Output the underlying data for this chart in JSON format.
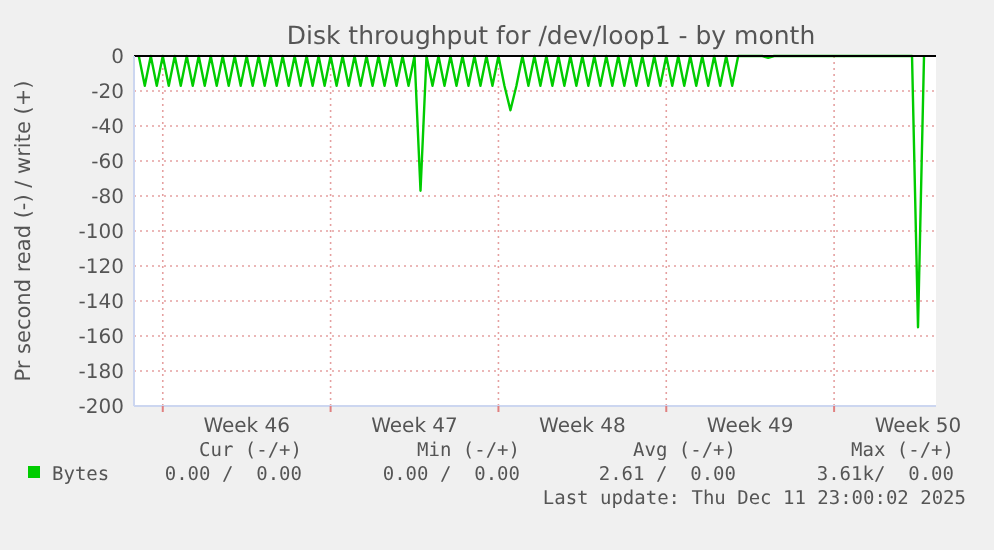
{
  "chart_data": {
    "type": "line",
    "title": "Disk throughput for /dev/loop1 - by month",
    "ylabel": "Pr second read (-) / write (+)",
    "categories": [
      null,
      null,
      null,
      null,
      null,
      null,
      null,
      null,
      null,
      null,
      null,
      null,
      null,
      null,
      null,
      null,
      null,
      null,
      "Week 46",
      null,
      null,
      null,
      null,
      null,
      null,
      null,
      null,
      null,
      null,
      null,
      null,
      null,
      null,
      null,
      null,
      null,
      null,
      null,
      null,
      null,
      null,
      null,
      null,
      null,
      null,
      null,
      "Week 47",
      null,
      null,
      null,
      null,
      null,
      null,
      null,
      null,
      null,
      null,
      null,
      null,
      null,
      null,
      null,
      null,
      null,
      null,
      null,
      null,
      null,
      null,
      null,
      null,
      null,
      null,
      null,
      "Week 48",
      null,
      null,
      null,
      null,
      null,
      null,
      null,
      null,
      null,
      null,
      null,
      null,
      null,
      null,
      null,
      null,
      null,
      null,
      null,
      null,
      null,
      null,
      null,
      null,
      null,
      null,
      null,
      "Week 49",
      null,
      null,
      null,
      null,
      null,
      null,
      null,
      null,
      null,
      null,
      null,
      null,
      null,
      null,
      null,
      null,
      null,
      null,
      null,
      null,
      null,
      null,
      null,
      null,
      null,
      null,
      null,
      "Week 50",
      null
    ],
    "ylim": [
      -200,
      0
    ],
    "yticks": [
      0,
      -20,
      -40,
      -60,
      -80,
      -100,
      -120,
      -140,
      -160,
      -180,
      -200
    ],
    "grid": true,
    "legend": "bottom left",
    "line_style": "solid",
    "series": [
      {
        "name": "Bytes",
        "color": "#00cc00",
        "values": [
          0,
          -17,
          0,
          -17,
          0,
          -17,
          0,
          -17,
          0,
          -17,
          0,
          -17,
          0,
          -17,
          0,
          -17,
          0,
          -17,
          0,
          -17,
          0,
          -17,
          0,
          -17,
          0,
          -17,
          0,
          -17,
          0,
          -17,
          0,
          -17,
          0,
          -17,
          0,
          -17,
          0,
          -17,
          0,
          -17,
          0,
          -17,
          0,
          -17,
          0,
          -17,
          0,
          -77,
          0,
          -17,
          0,
          -17,
          0,
          -17,
          0,
          -17,
          0,
          -17,
          0,
          -17,
          0,
          -17,
          -31,
          -17,
          0,
          -17,
          0,
          -17,
          0,
          -17,
          0,
          -17,
          0,
          -17,
          0,
          -17,
          0,
          -17,
          0,
          -17,
          0,
          -17,
          0,
          -17,
          0,
          -17,
          0,
          -17,
          0,
          -17,
          0,
          -17,
          0,
          -17,
          0,
          -17,
          0,
          -17,
          0,
          -17,
          0,
          0,
          0,
          0,
          0,
          -1,
          0,
          0,
          0,
          0,
          0,
          0,
          0,
          0,
          0,
          0,
          0,
          0,
          0,
          0,
          0,
          0,
          0,
          0,
          0,
          0,
          0,
          0,
          0,
          0,
          -155,
          0
        ]
      }
    ],
    "annotations": [
      "Cur (-/+)",
      "Min (-/+)",
      "Avg (-/+)",
      "Max (-/+)",
      "0.00 /  0.00",
      "0.00 /  0.00",
      "2.61 /  0.00",
      "3.61k/  0.00",
      "Last update: Thu Dec 11 23:00:02 2025"
    ]
  }
}
